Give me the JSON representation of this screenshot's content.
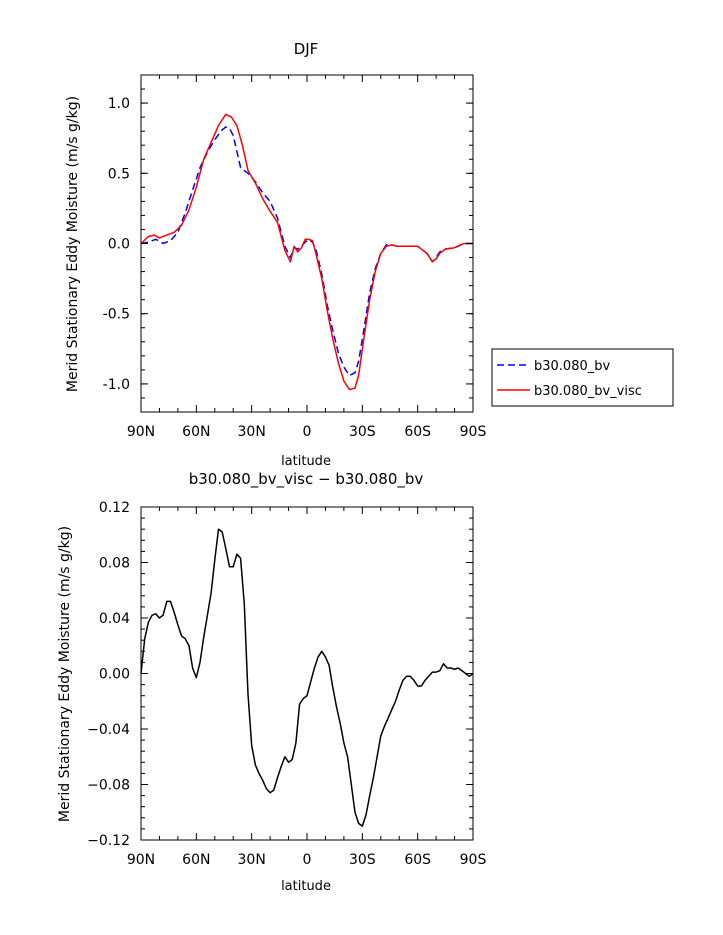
{
  "chart_data": [
    {
      "type": "line",
      "title": "DJF",
      "xlabel": "latitude",
      "ylabel": "Merid Stationary Eddy Moisture (m/s g/kg)",
      "xlim": [
        -90,
        90
      ],
      "x_direction": "north (left) to south (right)",
      "x_ticks": [
        -90,
        -60,
        -30,
        0,
        30,
        60,
        90
      ],
      "x_tick_labels": [
        "90N",
        "60N",
        "30N",
        "0",
        "30S",
        "60S",
        "90S"
      ],
      "ylim": [
        -1.2,
        1.2
      ],
      "y_ticks": [
        1.0,
        0.5,
        0.0,
        -0.5,
        -1.0
      ],
      "y_tick_labels": [
        "1.0",
        "0.5",
        "0.0",
        "-0.5",
        "-1.0"
      ],
      "legend_position": "right, outside plot",
      "series": [
        {
          "name": "b30.080_bv",
          "color": "#0000ff",
          "style": "dashed",
          "x": [
            -90,
            -86,
            -82,
            -78,
            -74,
            -70,
            -66,
            -62,
            -58,
            -54,
            -50,
            -46,
            -44,
            -42,
            -40,
            -36,
            -32,
            -28,
            -24,
            -20,
            -16,
            -12,
            -9,
            -7,
            -5,
            -3,
            -1,
            1,
            3,
            5,
            8,
            11,
            14,
            17,
            20,
            23,
            26,
            28,
            31,
            34,
            37,
            40,
            43,
            46,
            49,
            52,
            55,
            60,
            65,
            68,
            70,
            72,
            75,
            80,
            85,
            90
          ],
          "y": [
            0.0,
            0.01,
            0.03,
            0.0,
            0.02,
            0.08,
            0.22,
            0.38,
            0.54,
            0.65,
            0.74,
            0.81,
            0.83,
            0.82,
            0.77,
            0.54,
            0.5,
            0.44,
            0.36,
            0.3,
            0.18,
            -0.02,
            -0.1,
            -0.03,
            -0.04,
            -0.02,
            0.01,
            0.03,
            0.01,
            -0.05,
            -0.22,
            -0.44,
            -0.62,
            -0.78,
            -0.88,
            -0.94,
            -0.92,
            -0.84,
            -0.6,
            -0.35,
            -0.18,
            -0.07,
            -0.01,
            -0.01,
            -0.02,
            -0.02,
            -0.02,
            -0.02,
            -0.07,
            -0.13,
            -0.1,
            -0.06,
            -0.04,
            -0.03,
            0.0,
            0.0
          ]
        },
        {
          "name": "b30.080_bv_visc",
          "color": "#ff0000",
          "style": "solid",
          "x": [
            -90,
            -86,
            -83,
            -80,
            -76,
            -72,
            -68,
            -64,
            -60,
            -56,
            -52,
            -48,
            -44,
            -41,
            -38,
            -35,
            -32,
            -28,
            -24,
            -20,
            -16,
            -12,
            -9,
            -7,
            -5,
            -3,
            -1,
            1,
            3,
            5,
            8,
            11,
            14,
            17,
            20,
            23,
            26,
            28,
            31,
            34,
            37,
            40,
            43,
            46,
            49,
            52,
            55,
            60,
            65,
            68,
            70,
            72,
            75,
            80,
            85,
            90
          ],
          "y": [
            0.0,
            0.05,
            0.06,
            0.04,
            0.06,
            0.08,
            0.13,
            0.24,
            0.4,
            0.6,
            0.72,
            0.84,
            0.92,
            0.9,
            0.84,
            0.7,
            0.52,
            0.43,
            0.32,
            0.23,
            0.15,
            -0.05,
            -0.13,
            -0.02,
            -0.06,
            -0.03,
            0.03,
            0.03,
            0.02,
            -0.08,
            -0.25,
            -0.48,
            -0.68,
            -0.85,
            -0.98,
            -1.04,
            -1.03,
            -0.94,
            -0.66,
            -0.4,
            -0.2,
            -0.07,
            -0.02,
            -0.01,
            -0.02,
            -0.02,
            -0.02,
            -0.02,
            -0.07,
            -0.13,
            -0.11,
            -0.07,
            -0.04,
            -0.03,
            0.0,
            0.0
          ]
        }
      ]
    },
    {
      "type": "line",
      "title": "b30.080_bv_visc − b30.080_bv",
      "xlabel": "latitude",
      "ylabel": "Merid Stationary Eddy Moisture (m/s g/kg)",
      "xlim": [
        -90,
        90
      ],
      "x_direction": "north (left) to south (right)",
      "x_ticks": [
        -90,
        -60,
        -30,
        0,
        30,
        60,
        90
      ],
      "x_tick_labels": [
        "90N",
        "60N",
        "30N",
        "0",
        "30S",
        "60S",
        "90S"
      ],
      "ylim": [
        -0.12,
        0.12
      ],
      "y_ticks": [
        0.12,
        0.08,
        0.04,
        0.0,
        -0.04,
        -0.08,
        -0.12
      ],
      "y_tick_labels": [
        "0.12",
        "0.08",
        "0.04",
        "0.00",
        "−0.04",
        "−0.08",
        "−0.12"
      ],
      "series": [
        {
          "color": "#000000",
          "style": "solid",
          "x": [
            -90,
            -88,
            -86,
            -84,
            -82,
            -80,
            -78,
            -76,
            -74,
            -72,
            -70,
            -68,
            -66,
            -64,
            -62,
            -60,
            -58,
            -56,
            -54,
            -52,
            -50,
            -48,
            -46,
            -44,
            -42,
            -40,
            -38,
            -36,
            -34,
            -32,
            -30,
            -28,
            -26,
            -24,
            -22,
            -20,
            -18,
            -16,
            -14,
            -12,
            -10,
            -8,
            -6,
            -4,
            -2,
            0,
            2,
            4,
            6,
            8,
            10,
            12,
            14,
            16,
            18,
            20,
            22,
            24,
            26,
            28,
            30,
            32,
            34,
            36,
            38,
            40,
            42,
            44,
            46,
            48,
            50,
            52,
            54,
            56,
            58,
            60,
            62,
            64,
            66,
            68,
            70,
            72,
            74,
            76,
            78,
            80,
            82,
            84,
            86,
            88,
            90
          ],
          "y": [
            0.0,
            0.025,
            0.037,
            0.042,
            0.043,
            0.04,
            0.042,
            0.052,
            0.052,
            0.044,
            0.035,
            0.027,
            0.025,
            0.02,
            0.004,
            -0.003,
            0.008,
            0.026,
            0.042,
            0.058,
            0.082,
            0.104,
            0.102,
            0.09,
            0.077,
            0.077,
            0.086,
            0.083,
            0.05,
            -0.015,
            -0.052,
            -0.066,
            -0.072,
            -0.077,
            -0.083,
            -0.086,
            -0.084,
            -0.075,
            -0.067,
            -0.06,
            -0.064,
            -0.062,
            -0.05,
            -0.022,
            -0.018,
            -0.016,
            -0.006,
            0.004,
            0.012,
            0.016,
            0.012,
            0.006,
            -0.01,
            -0.024,
            -0.036,
            -0.05,
            -0.06,
            -0.08,
            -0.1,
            -0.108,
            -0.11,
            -0.102,
            -0.088,
            -0.075,
            -0.06,
            -0.045,
            -0.038,
            -0.032,
            -0.026,
            -0.02,
            -0.012,
            -0.005,
            -0.002,
            -0.002,
            -0.005,
            -0.009,
            -0.009,
            -0.005,
            -0.002,
            0.001,
            0.001,
            0.002,
            0.007,
            0.004,
            0.004,
            0.003,
            0.004,
            0.002,
            0.0,
            -0.002,
            0.0
          ]
        }
      ]
    }
  ]
}
